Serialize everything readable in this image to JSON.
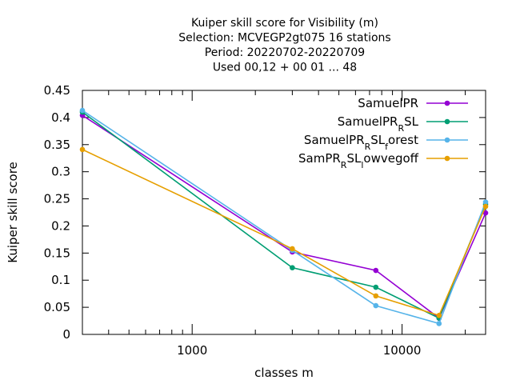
{
  "chart_data": {
    "type": "line",
    "title_lines": [
      "Kuiper skill score  for Visibility (m)",
      "Selection: MCVEGP2gt075      16 stations",
      "Period: 20220702-20220709",
      "Used  00,12  + 00 01 ... 48"
    ],
    "xlabel": "classes m",
    "ylabel": "Kuiper skill score",
    "xscale": "log",
    "xlim": [
      300,
      25000
    ],
    "ylim": [
      0,
      0.45
    ],
    "x_ticks": [
      1000,
      10000
    ],
    "x_tick_labels": [
      "1000",
      "10000"
    ],
    "y_ticks": [
      0,
      0.05,
      0.1,
      0.15,
      0.2,
      0.25,
      0.3,
      0.35,
      0.4,
      0.45
    ],
    "y_tick_labels": [
      "0",
      "0.05",
      "0.1",
      "0.15",
      "0.2",
      "0.25",
      "0.3",
      "0.35",
      "0.4",
      "0.45"
    ],
    "grid": false,
    "legend_position": "top-right",
    "x": [
      300,
      3000,
      7500,
      15000,
      25000
    ],
    "series": [
      {
        "name_parts": [
          [
            "SamuelPR",
            "normal"
          ]
        ],
        "color": "#9400d3",
        "values": [
          0.404,
          0.152,
          0.118,
          0.03,
          0.224
        ]
      },
      {
        "name_parts": [
          [
            "SamuelPR",
            "normal"
          ],
          [
            "R",
            "sub"
          ],
          [
            "SL",
            "normal"
          ]
        ],
        "color": "#009e73",
        "values": [
          0.41,
          0.123,
          0.087,
          0.03,
          0.24
        ]
      },
      {
        "name_parts": [
          [
            "SamuelPR",
            "normal"
          ],
          [
            "R",
            "sub"
          ],
          [
            "SL",
            "normal"
          ],
          [
            "f",
            "sub"
          ],
          [
            "orest",
            "normal"
          ]
        ],
        "color": "#56b4e9",
        "values": [
          0.413,
          0.155,
          0.053,
          0.02,
          0.244
        ]
      },
      {
        "name_parts": [
          [
            "SamPR",
            "normal"
          ],
          [
            "R",
            "sub"
          ],
          [
            "SL",
            "normal"
          ],
          [
            "l",
            "sub"
          ],
          [
            "owvegoff",
            "normal"
          ]
        ],
        "color": "#e69f00",
        "values": [
          0.341,
          0.158,
          0.071,
          0.035,
          0.236
        ]
      }
    ]
  }
}
